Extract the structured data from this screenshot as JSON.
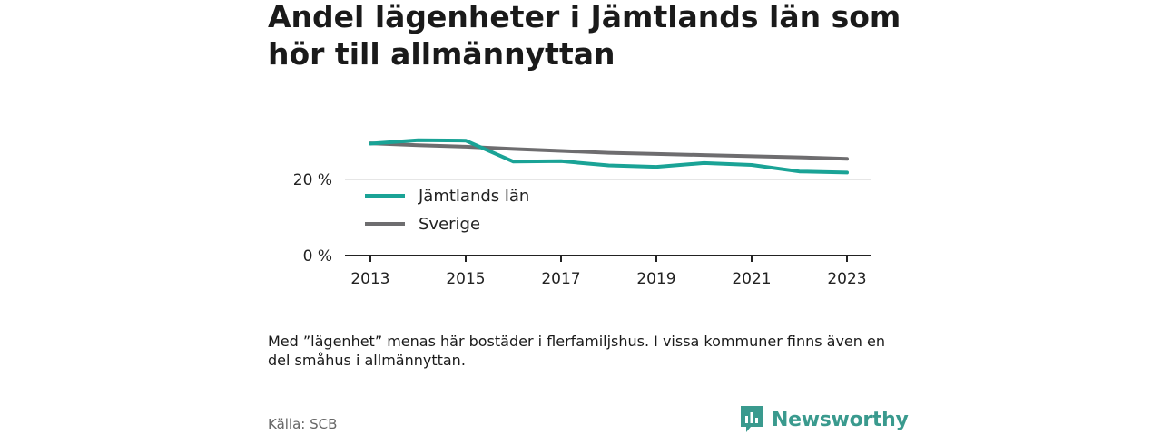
{
  "title": "Andel lägenheter i Jämtlands län som hör till allmännyttan",
  "note": "Med ”lägenhet” menas här bostäder i flerfamiljshus. I vissa kommuner finns även en del småhus i allmännyttan.",
  "source": "Källa: SCB",
  "brand": {
    "name": "Newsworthy",
    "icon": "newsworthy-logo-icon",
    "color": "#3a9a8e"
  },
  "chart_data": {
    "type": "line",
    "title": "Andel lägenheter i Jämtlands län som hör till allmännyttan",
    "xlabel": "",
    "ylabel": "",
    "x": [
      2013,
      2014,
      2015,
      2016,
      2017,
      2018,
      2019,
      2020,
      2021,
      2022,
      2023
    ],
    "xticks": [
      2013,
      2015,
      2017,
      2019,
      2021,
      2023
    ],
    "xtick_labels": [
      "2013",
      "2015",
      "2017",
      "2019",
      "2021",
      "2023"
    ],
    "yticks": [
      0,
      20
    ],
    "ytick_labels": [
      "0 %",
      "20 %"
    ],
    "ylim": [
      0,
      40
    ],
    "grid": true,
    "legend_position": "inside-left",
    "series": [
      {
        "name": "Jämtlands län",
        "color": "#1aa396",
        "values": [
          29.4,
          30.3,
          30.2,
          24.7,
          24.8,
          23.7,
          23.3,
          24.3,
          23.8,
          22.1,
          21.8
        ]
      },
      {
        "name": "Sverige",
        "color": "#6e6d6f",
        "values": [
          29.5,
          29.0,
          28.6,
          28.0,
          27.5,
          27.0,
          26.7,
          26.4,
          26.1,
          25.8,
          25.4
        ]
      }
    ]
  }
}
